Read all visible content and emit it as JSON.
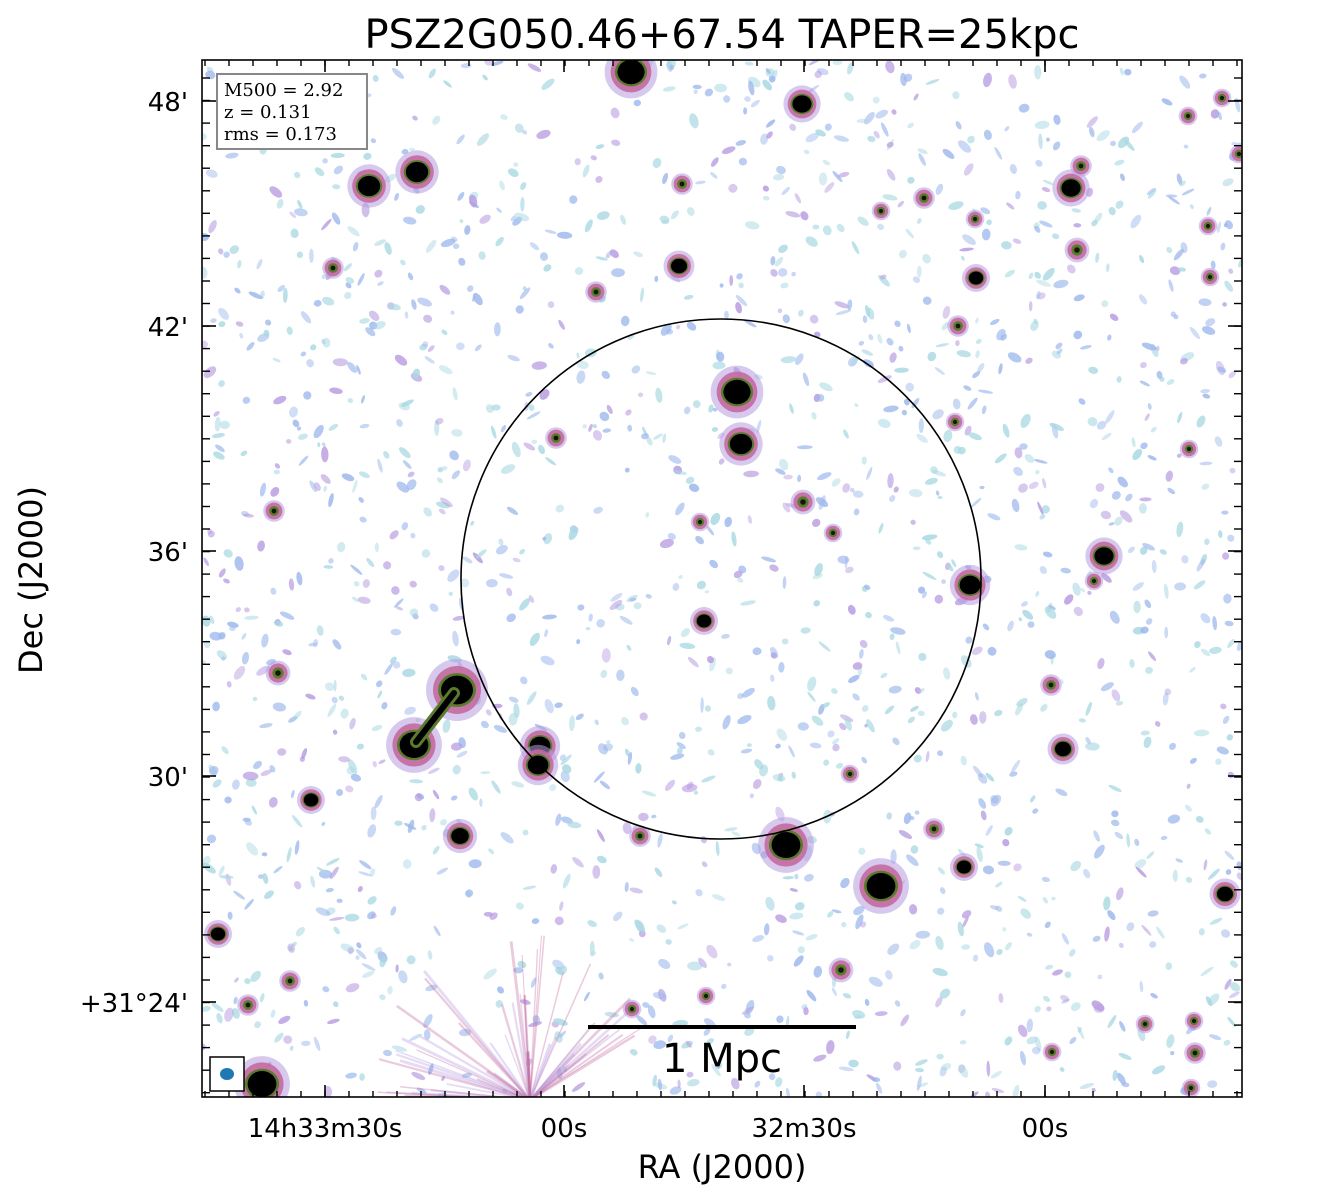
{
  "figure": {
    "title": "PSZ2G050.46+67.54 TAPER=25kpc",
    "xlabel": "RA (J2000)",
    "ylabel": "Dec (J2000)"
  },
  "info_box": {
    "lines": [
      "M500 = 2.92",
      "z = 0.131",
      "rms = 0.173"
    ]
  },
  "scale_bar": {
    "label": "1 Mpc"
  },
  "x_ticks": [
    {
      "label": "14h33m30s",
      "pos": 0.12
    },
    {
      "label": "00s",
      "pos": 0.35
    },
    {
      "label": "32m30s",
      "pos": 0.58
    },
    {
      "label": "00s",
      "pos": 0.81
    }
  ],
  "y_ticks": [
    {
      "label": "48'",
      "pos": 0.04
    },
    {
      "label": "42'",
      "pos": 0.26
    },
    {
      "label": "36'",
      "pos": 0.47
    },
    {
      "label": "30'",
      "pos": 0.69
    },
    {
      "label": "+31°24'",
      "pos": 0.91
    }
  ],
  "colors": {
    "noise_cyan": "#a9d8e2",
    "noise_blue": "#9db8ec",
    "noise_purple": "#b79be0",
    "source_magenta": "#c46aa0",
    "source_green": "#5c7a2e",
    "source_core": "#000000",
    "beam_fill": "#1f77b4",
    "circle": "#000000"
  }
}
